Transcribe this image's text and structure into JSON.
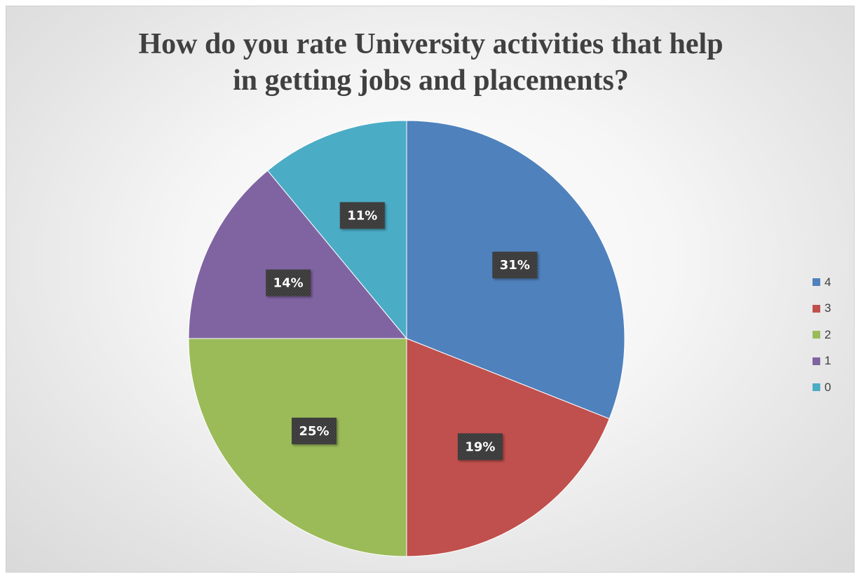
{
  "chart_data": {
    "type": "pie",
    "title": "How do you rate University activities that help in getting jobs and placements?",
    "title_lines": [
      "How do you rate University activities that help",
      "in getting jobs and placements?"
    ],
    "slices": [
      {
        "label": "4",
        "value": 31,
        "display": "31%",
        "color": "#4f81bd"
      },
      {
        "label": "3",
        "value": 19,
        "display": "19%",
        "color": "#c0504d"
      },
      {
        "label": "2",
        "value": 25,
        "display": "25%",
        "color": "#9bbb59"
      },
      {
        "label": "1",
        "value": 14,
        "display": "14%",
        "color": "#8064a2"
      },
      {
        "label": "0",
        "value": 11,
        "display": "11%",
        "color": "#4bacc6"
      }
    ],
    "start_angle_deg": 0,
    "direction": "clockwise",
    "legend": {
      "position": "right",
      "entries": [
        "4",
        "3",
        "2",
        "1",
        "0"
      ]
    },
    "data_label_background": "#3a3a3a"
  }
}
